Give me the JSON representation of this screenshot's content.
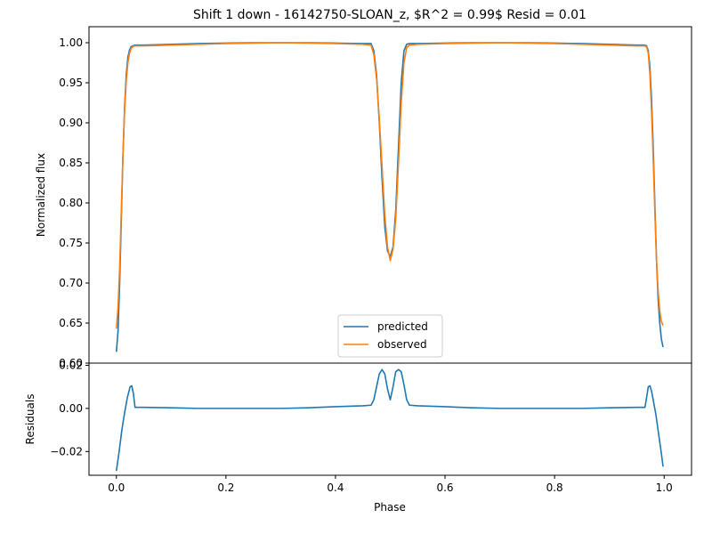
{
  "chart_data": [
    {
      "type": "line",
      "title": "Shift 1 down - 16142750-SLOAN_z, $R^2 = 0.99$ Resid = 0.01",
      "xlabel": "",
      "ylabel": "Normalized flux",
      "xlim": [
        -0.05,
        1.05
      ],
      "ylim": [
        0.6,
        1.02
      ],
      "yticks": [
        0.6,
        0.65,
        0.7,
        0.75,
        0.8,
        0.85,
        0.9,
        0.95,
        1.0
      ],
      "ytick_labels": [
        "0.60",
        "0.65",
        "0.70",
        "0.75",
        "0.80",
        "0.85",
        "0.90",
        "0.95",
        "1.00"
      ],
      "grid": false,
      "legend": "lower-center",
      "series": [
        {
          "name": "predicted",
          "color": "#1f77b4",
          "x": [
            0.0,
            0.003,
            0.006,
            0.009,
            0.012,
            0.015,
            0.018,
            0.021,
            0.024,
            0.027,
            0.03,
            0.033,
            0.036,
            0.05,
            0.1,
            0.15,
            0.2,
            0.25,
            0.3,
            0.35,
            0.4,
            0.45,
            0.465,
            0.47,
            0.475,
            0.48,
            0.485,
            0.49,
            0.495,
            0.5,
            0.505,
            0.51,
            0.515,
            0.52,
            0.525,
            0.53,
            0.535,
            0.55,
            0.6,
            0.65,
            0.7,
            0.75,
            0.8,
            0.85,
            0.9,
            0.95,
            0.965,
            0.968,
            0.971,
            0.974,
            0.977,
            0.98,
            0.983,
            0.986,
            0.989,
            0.992,
            0.995,
            0.998
          ],
          "y": [
            0.614,
            0.64,
            0.7,
            0.78,
            0.86,
            0.92,
            0.96,
            0.982,
            0.991,
            0.995,
            0.996,
            0.997,
            0.997,
            0.997,
            0.998,
            0.999,
            0.9995,
            1.0,
            1.0,
            1.0,
            0.9995,
            0.999,
            0.999,
            0.99,
            0.96,
            0.9,
            0.83,
            0.77,
            0.74,
            0.733,
            0.745,
            0.79,
            0.87,
            0.95,
            0.99,
            0.998,
            0.999,
            0.999,
            0.9995,
            1.0,
            1.0,
            1.0,
            0.9995,
            0.999,
            0.998,
            0.997,
            0.997,
            0.996,
            0.99,
            0.97,
            0.93,
            0.87,
            0.8,
            0.73,
            0.68,
            0.65,
            0.63,
            0.62
          ]
        },
        {
          "name": "observed",
          "color": "#ff7f0e",
          "x": [
            0.0,
            0.003,
            0.006,
            0.009,
            0.012,
            0.015,
            0.018,
            0.021,
            0.024,
            0.027,
            0.03,
            0.033,
            0.036,
            0.05,
            0.1,
            0.15,
            0.2,
            0.25,
            0.3,
            0.35,
            0.4,
            0.45,
            0.465,
            0.47,
            0.475,
            0.48,
            0.485,
            0.49,
            0.495,
            0.5,
            0.505,
            0.51,
            0.515,
            0.52,
            0.525,
            0.53,
            0.535,
            0.55,
            0.6,
            0.65,
            0.7,
            0.75,
            0.8,
            0.85,
            0.9,
            0.95,
            0.965,
            0.968,
            0.971,
            0.974,
            0.977,
            0.98,
            0.983,
            0.986,
            0.989,
            0.992,
            0.995,
            0.998
          ],
          "y": [
            0.643,
            0.67,
            0.72,
            0.79,
            0.86,
            0.915,
            0.952,
            0.975,
            0.987,
            0.993,
            0.995,
            0.996,
            0.996,
            0.996,
            0.997,
            0.998,
            0.999,
            0.9995,
            1.0,
            0.9995,
            0.999,
            0.998,
            0.997,
            0.985,
            0.955,
            0.905,
            0.845,
            0.785,
            0.745,
            0.728,
            0.742,
            0.78,
            0.85,
            0.925,
            0.975,
            0.994,
            0.997,
            0.998,
            0.999,
            0.9995,
            1.0,
            0.9995,
            0.999,
            0.998,
            0.997,
            0.996,
            0.996,
            0.995,
            0.987,
            0.96,
            0.915,
            0.855,
            0.79,
            0.73,
            0.69,
            0.665,
            0.652,
            0.647
          ]
        }
      ]
    },
    {
      "type": "line",
      "title": "",
      "xlabel": "Phase",
      "ylabel": "Residuals",
      "xlim": [
        -0.05,
        1.05
      ],
      "ylim": [
        -0.031,
        0.021
      ],
      "xticks": [
        0.0,
        0.2,
        0.4,
        0.6,
        0.8,
        1.0
      ],
      "xtick_labels": [
        "0.0",
        "0.2",
        "0.4",
        "0.6",
        "0.8",
        "1.0"
      ],
      "yticks": [
        -0.02,
        0.0,
        0.02
      ],
      "ytick_labels": [
        "−0.02",
        "0.00",
        "0.02"
      ],
      "grid": false,
      "series": [
        {
          "name": "",
          "color": "#1f77b4",
          "x": [
            0.0,
            0.005,
            0.01,
            0.015,
            0.02,
            0.025,
            0.028,
            0.031,
            0.034,
            0.05,
            0.1,
            0.15,
            0.2,
            0.25,
            0.3,
            0.35,
            0.4,
            0.45,
            0.465,
            0.47,
            0.475,
            0.48,
            0.485,
            0.49,
            0.495,
            0.5,
            0.505,
            0.51,
            0.515,
            0.52,
            0.525,
            0.53,
            0.535,
            0.55,
            0.6,
            0.65,
            0.7,
            0.75,
            0.8,
            0.85,
            0.9,
            0.95,
            0.965,
            0.968,
            0.971,
            0.974,
            0.977,
            0.98,
            0.985,
            0.99,
            0.995,
            0.998
          ],
          "y": [
            -0.029,
            -0.02,
            -0.01,
            -0.002,
            0.005,
            0.01,
            0.0105,
            0.007,
            0.0005,
            0.0005,
            0.0003,
            0.0,
            0.0,
            0.0,
            0.0,
            0.0003,
            0.0008,
            0.0012,
            0.0015,
            0.004,
            0.01,
            0.016,
            0.018,
            0.016,
            0.009,
            0.004,
            0.01,
            0.017,
            0.018,
            0.017,
            0.011,
            0.004,
            0.0015,
            0.0012,
            0.0008,
            0.0003,
            0.0,
            0.0,
            0.0,
            0.0,
            0.0003,
            0.0005,
            0.0005,
            0.005,
            0.01,
            0.0105,
            0.008,
            0.004,
            -0.003,
            -0.012,
            -0.021,
            -0.027
          ]
        }
      ]
    }
  ]
}
